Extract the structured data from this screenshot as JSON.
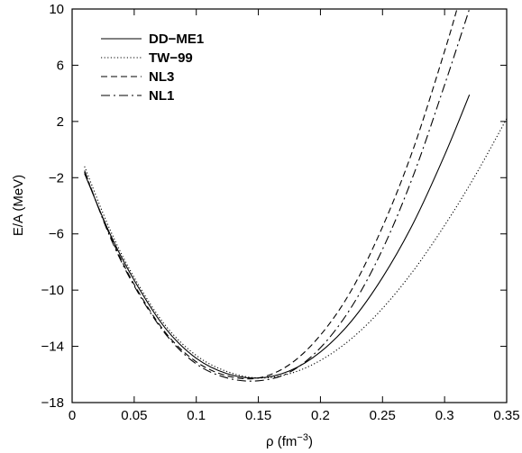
{
  "chart_data": {
    "type": "line",
    "xlabel": "ρ (fm",
    "xlabel_exp": "−3",
    "xlabel_close": ")",
    "ylabel": "E/A (MeV)",
    "xlim": [
      0,
      0.35
    ],
    "ylim": [
      -18,
      10
    ],
    "xticks": [
      0,
      0.05,
      0.1,
      0.15,
      0.2,
      0.25,
      0.3,
      0.35
    ],
    "xtick_labels": [
      "0",
      "0.05",
      "0.1",
      "0.15",
      "0.2",
      "0.25",
      "0.3",
      "0.35"
    ],
    "yticks": [
      -18,
      -14,
      -10,
      -6,
      -2,
      2,
      6,
      10
    ],
    "ytick_labels": [
      "−18",
      "−14",
      "−10",
      "−6",
      "−2",
      "2",
      "6",
      "10"
    ],
    "grid": false,
    "legend_position": "top-left",
    "series": [
      {
        "name": "DD−ME1",
        "style": "solid",
        "x": [
          0.01,
          0.03,
          0.05,
          0.075,
          0.1,
          0.125,
          0.15,
          0.175,
          0.2,
          0.225,
          0.25,
          0.275,
          0.3,
          0.32
        ],
        "y": [
          -1.7,
          -5.9,
          -9.3,
          -12.7,
          -14.85,
          -15.95,
          -16.25,
          -15.75,
          -14.4,
          -12.2,
          -9.1,
          -5.2,
          -0.4,
          3.9
        ]
      },
      {
        "name": "TW−99",
        "style": "dotted",
        "x": [
          0.01,
          0.03,
          0.05,
          0.075,
          0.1,
          0.125,
          0.15,
          0.175,
          0.2,
          0.225,
          0.25,
          0.275,
          0.3,
          0.325,
          0.35
        ],
        "y": [
          -1.2,
          -5.6,
          -9.1,
          -12.5,
          -14.65,
          -15.8,
          -16.25,
          -15.95,
          -15.0,
          -13.45,
          -11.3,
          -8.6,
          -5.4,
          -1.8,
          2.2
        ]
      },
      {
        "name": "NL3",
        "style": "dashed",
        "x": [
          0.01,
          0.03,
          0.05,
          0.075,
          0.1,
          0.125,
          0.15,
          0.175,
          0.2,
          0.225,
          0.25,
          0.275,
          0.3,
          0.31
        ],
        "y": [
          -1.6,
          -6.0,
          -9.6,
          -13.0,
          -15.1,
          -16.1,
          -16.25,
          -15.3,
          -13.2,
          -10.0,
          -5.5,
          0.1,
          7.0,
          10.0
        ]
      },
      {
        "name": "NL1",
        "style": "dashdot",
        "x": [
          0.01,
          0.03,
          0.05,
          0.075,
          0.1,
          0.125,
          0.15,
          0.175,
          0.2,
          0.225,
          0.25,
          0.275,
          0.3,
          0.32
        ],
        "y": [
          -1.5,
          -6.1,
          -9.7,
          -13.1,
          -15.25,
          -16.25,
          -16.45,
          -15.85,
          -14.1,
          -11.2,
          -7.1,
          -1.8,
          4.6,
          10.0
        ]
      }
    ]
  }
}
